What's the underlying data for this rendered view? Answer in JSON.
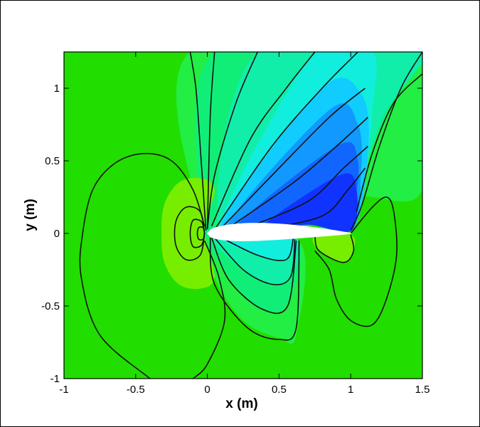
{
  "chart_data": {
    "type": "contour",
    "xlabel": "x (m)",
    "ylabel": "y (m)",
    "xlim": [
      -1,
      1.5
    ],
    "ylim": [
      -1,
      1.25
    ],
    "xticks": [
      -1,
      -0.5,
      0,
      0.5,
      1,
      1.5
    ],
    "yticks": [
      -1,
      -0.5,
      0,
      0.5,
      1
    ],
    "xtick_labels": [
      "-1",
      "-0.5",
      "0",
      "0.5",
      "1",
      "1.5"
    ],
    "ytick_labels": [
      "-1",
      "-0.5",
      "0",
      "0.5",
      "1"
    ],
    "grid": false,
    "legend": "none",
    "airfoil": {
      "leading_edge": [
        0,
        0
      ],
      "trailing_edge": [
        1,
        0
      ]
    },
    "colors": {
      "background_level": "#22dd00",
      "near_leading_edge_level": "#77ee00",
      "suction_peak_level": "#1a2fff",
      "contour_line": "#111111"
    },
    "fill_regions": [
      {
        "name": "far-field",
        "color": "#22dd00",
        "points": [
          [
            -1,
            -1
          ],
          [
            1.5,
            -1
          ],
          [
            1.5,
            1.25
          ],
          [
            -1,
            1.25
          ]
        ]
      },
      {
        "name": "upper-fan-1",
        "color": "#22ee44",
        "points": [
          [
            -0.12,
            1.25
          ],
          [
            1.5,
            1.25
          ],
          [
            1.5,
            0.3
          ],
          [
            1.05,
            0.25
          ],
          [
            0.5,
            0.12
          ],
          [
            0.08,
            0.02
          ],
          [
            -0.02,
            0.01
          ]
        ]
      },
      {
        "name": "upper-fan-2",
        "color": "#11ee77",
        "points": [
          [
            0.05,
            1.25
          ],
          [
            1.5,
            1.25
          ],
          [
            1.5,
            1.2
          ],
          [
            1.3,
            0.9
          ],
          [
            1.15,
            0.6
          ],
          [
            1.02,
            0.3
          ],
          [
            0.55,
            0.13
          ],
          [
            0.08,
            0.02
          ],
          [
            -0.02,
            0.01
          ]
        ]
      },
      {
        "name": "upper-fan-3",
        "color": "#11eeaa",
        "points": [
          [
            0.35,
            1.25
          ],
          [
            1.5,
            1.25
          ],
          [
            1.48,
            1.15
          ],
          [
            1.25,
            0.85
          ],
          [
            1.12,
            0.5
          ],
          [
            1.0,
            0.06
          ],
          [
            0.6,
            0.12
          ],
          [
            0.08,
            0.02
          ]
        ]
      },
      {
        "name": "upper-fan-4",
        "color": "#11eedd",
        "points": [
          [
            0.75,
            1.25
          ],
          [
            1.15,
            1.25
          ],
          [
            1.15,
            0.85
          ],
          [
            1.1,
            0.4
          ],
          [
            1.0,
            0.03
          ],
          [
            0.6,
            0.11
          ],
          [
            0.08,
            0.02
          ]
        ]
      },
      {
        "name": "upper-fan-5",
        "color": "#11ccff",
        "points": [
          [
            0.8,
            1.0
          ],
          [
            1.08,
            0.95
          ],
          [
            1.12,
            0.55
          ],
          [
            1.0,
            0.02
          ],
          [
            0.6,
            0.1
          ],
          [
            0.08,
            0.02
          ]
        ]
      },
      {
        "name": "upper-fan-6",
        "color": "#1199ff",
        "points": [
          [
            0.85,
            0.85
          ],
          [
            1.05,
            0.75
          ],
          [
            1.07,
            0.4
          ],
          [
            1.0,
            0.02
          ],
          [
            0.6,
            0.09
          ],
          [
            0.12,
            0.02
          ]
        ]
      },
      {
        "name": "upper-fan-7",
        "color": "#1166ff",
        "points": [
          [
            0.9,
            0.6
          ],
          [
            1.05,
            0.5
          ],
          [
            1.02,
            0.15
          ],
          [
            0.99,
            0.01
          ],
          [
            0.65,
            0.08
          ],
          [
            0.18,
            0.02
          ]
        ]
      },
      {
        "name": "upper-fan-8",
        "color": "#1133ff",
        "points": [
          [
            0.92,
            0.4
          ],
          [
            1.04,
            0.3
          ],
          [
            1.0,
            0.02
          ],
          [
            0.7,
            0.06
          ],
          [
            0.35,
            0.02
          ]
        ]
      },
      {
        "name": "lower-lobe-1",
        "color": "#22ee44",
        "points": [
          [
            0.02,
            -0.02
          ],
          [
            0.05,
            -0.3
          ],
          [
            0.25,
            -0.6
          ],
          [
            0.5,
            -0.72
          ],
          [
            0.62,
            -0.7
          ],
          [
            0.64,
            -0.05
          ]
        ]
      },
      {
        "name": "lower-lobe-2",
        "color": "#11ee77",
        "points": [
          [
            0.03,
            -0.02
          ],
          [
            0.15,
            -0.3
          ],
          [
            0.35,
            -0.5
          ],
          [
            0.55,
            -0.5
          ],
          [
            0.62,
            -0.05
          ]
        ]
      },
      {
        "name": "lower-lobe-3",
        "color": "#11eeaa",
        "points": [
          [
            0.05,
            -0.02
          ],
          [
            0.25,
            -0.25
          ],
          [
            0.45,
            -0.35
          ],
          [
            0.58,
            -0.3
          ],
          [
            0.61,
            -0.04
          ]
        ]
      },
      {
        "name": "lower-lobe-4",
        "color": "#11eedd",
        "points": [
          [
            0.08,
            -0.02
          ],
          [
            0.35,
            -0.15
          ],
          [
            0.55,
            -0.18
          ],
          [
            0.6,
            -0.03
          ]
        ]
      },
      {
        "name": "le-stagnation",
        "color": "#77ee00",
        "points": [
          [
            -0.32,
            0
          ],
          [
            -0.3,
            0.2
          ],
          [
            -0.2,
            0.35
          ],
          [
            -0.05,
            0.38
          ],
          [
            0.05,
            0.3
          ],
          [
            -0.02,
            0.02
          ],
          [
            0.05,
            -0.3
          ],
          [
            -0.05,
            -0.38
          ],
          [
            -0.2,
            -0.35
          ],
          [
            -0.3,
            -0.2
          ]
        ]
      },
      {
        "name": "te-region",
        "color": "#77ee00",
        "points": [
          [
            0.75,
            -0.02
          ],
          [
            1.0,
            -0.01
          ],
          [
            1.02,
            -0.12
          ],
          [
            0.95,
            -0.2
          ],
          [
            0.78,
            -0.12
          ]
        ]
      }
    ],
    "contour_lines": [
      [
        [
          -0.4,
          -1
        ],
        [
          -0.75,
          -0.7
        ],
        [
          -0.88,
          -0.3
        ],
        [
          -0.87,
          0
        ],
        [
          -0.8,
          0.3
        ],
        [
          -0.65,
          0.48
        ],
        [
          -0.45,
          0.55
        ],
        [
          -0.25,
          0.5
        ],
        [
          -0.1,
          0.3
        ],
        [
          -0.02,
          0.05
        ]
      ],
      [
        [
          -0.02,
          -0.05
        ],
        [
          0.08,
          -0.3
        ],
        [
          0.12,
          -0.6
        ],
        [
          0.0,
          -0.9
        ],
        [
          -0.1,
          -1
        ]
      ],
      [
        [
          -0.12,
          1.25
        ],
        [
          -0.08,
          1.0
        ],
        [
          -0.05,
          0.6
        ],
        [
          -0.01,
          0.02
        ]
      ],
      [
        [
          0.05,
          1.25
        ],
        [
          0.02,
          0.8
        ],
        [
          0.0,
          0.03
        ]
      ],
      [
        [
          0.35,
          1.25
        ],
        [
          0.2,
          0.9
        ],
        [
          0.05,
          0.4
        ],
        [
          0.0,
          0.03
        ]
      ],
      [
        [
          0.75,
          1.25
        ],
        [
          0.55,
          1.0
        ],
        [
          0.3,
          0.65
        ],
        [
          0.03,
          0.05
        ]
      ],
      [
        [
          1.05,
          1.25
        ],
        [
          0.8,
          1.0
        ],
        [
          0.45,
          0.6
        ],
        [
          0.06,
          0.04
        ]
      ],
      [
        [
          1.1,
          1.0
        ],
        [
          0.85,
          0.8
        ],
        [
          0.5,
          0.45
        ],
        [
          0.1,
          0.04
        ]
      ],
      [
        [
          1.12,
          0.8
        ],
        [
          0.9,
          0.6
        ],
        [
          0.6,
          0.35
        ],
        [
          0.15,
          0.04
        ]
      ],
      [
        [
          1.12,
          0.6
        ],
        [
          0.95,
          0.45
        ],
        [
          0.7,
          0.22
        ],
        [
          0.25,
          0.03
        ]
      ],
      [
        [
          1.1,
          0.45
        ],
        [
          0.98,
          0.3
        ],
        [
          0.8,
          0.12
        ],
        [
          0.4,
          0.03
        ]
      ],
      [
        [
          1.5,
          1.25
        ],
        [
          1.35,
          1.0
        ],
        [
          1.2,
          0.6
        ],
        [
          1.08,
          0.2
        ],
        [
          1.0,
          0.02
        ]
      ],
      [
        [
          1.5,
          1.1
        ],
        [
          1.3,
          0.9
        ],
        [
          1.15,
          0.55
        ],
        [
          1.04,
          0.15
        ]
      ],
      [
        [
          1.0,
          0.0
        ],
        [
          1.15,
          0.18
        ],
        [
          1.25,
          0.25
        ],
        [
          1.3,
          0.15
        ],
        [
          1.32,
          -0.15
        ],
        [
          1.25,
          -0.45
        ],
        [
          1.15,
          -0.63
        ],
        [
          1.0,
          -0.6
        ],
        [
          0.9,
          -0.45
        ],
        [
          0.85,
          -0.25
        ],
        [
          0.75,
          -0.12
        ]
      ],
      [
        [
          0.02,
          -0.03
        ],
        [
          0.05,
          -0.35
        ],
        [
          0.28,
          -0.65
        ],
        [
          0.5,
          -0.73
        ],
        [
          0.62,
          -0.65
        ],
        [
          0.64,
          -0.05
        ]
      ],
      [
        [
          0.03,
          -0.03
        ],
        [
          0.15,
          -0.32
        ],
        [
          0.38,
          -0.52
        ],
        [
          0.56,
          -0.5
        ],
        [
          0.62,
          -0.05
        ]
      ],
      [
        [
          0.05,
          -0.03
        ],
        [
          0.25,
          -0.25
        ],
        [
          0.45,
          -0.35
        ],
        [
          0.58,
          -0.3
        ],
        [
          0.61,
          -0.04
        ]
      ],
      [
        [
          0.08,
          -0.02
        ],
        [
          0.35,
          -0.15
        ],
        [
          0.55,
          -0.18
        ],
        [
          0.6,
          -0.03
        ]
      ],
      [
        [
          -0.02,
          0.0
        ],
        [
          -0.05,
          0.15
        ],
        [
          -0.15,
          0.18
        ],
        [
          -0.22,
          0.08
        ],
        [
          -0.22,
          -0.08
        ],
        [
          -0.15,
          -0.18
        ],
        [
          -0.05,
          -0.15
        ],
        [
          -0.02,
          0.0
        ]
      ],
      [
        [
          -0.02,
          0.0
        ],
        [
          -0.04,
          0.08
        ],
        [
          -0.1,
          0.09
        ],
        [
          -0.12,
          0.0
        ],
        [
          -0.1,
          -0.09
        ],
        [
          -0.04,
          -0.08
        ],
        [
          -0.02,
          0.0
        ]
      ],
      [
        [
          -0.02,
          0.0
        ],
        [
          -0.03,
          0.04
        ],
        [
          -0.06,
          0.04
        ],
        [
          -0.07,
          0.0
        ],
        [
          -0.06,
          -0.04
        ],
        [
          -0.03,
          -0.04
        ],
        [
          -0.02,
          0.0
        ]
      ],
      [
        [
          0.75,
          -0.02
        ],
        [
          0.78,
          -0.12
        ],
        [
          0.95,
          -0.2
        ],
        [
          1.02,
          -0.12
        ],
        [
          1.0,
          -0.01
        ]
      ]
    ]
  }
}
